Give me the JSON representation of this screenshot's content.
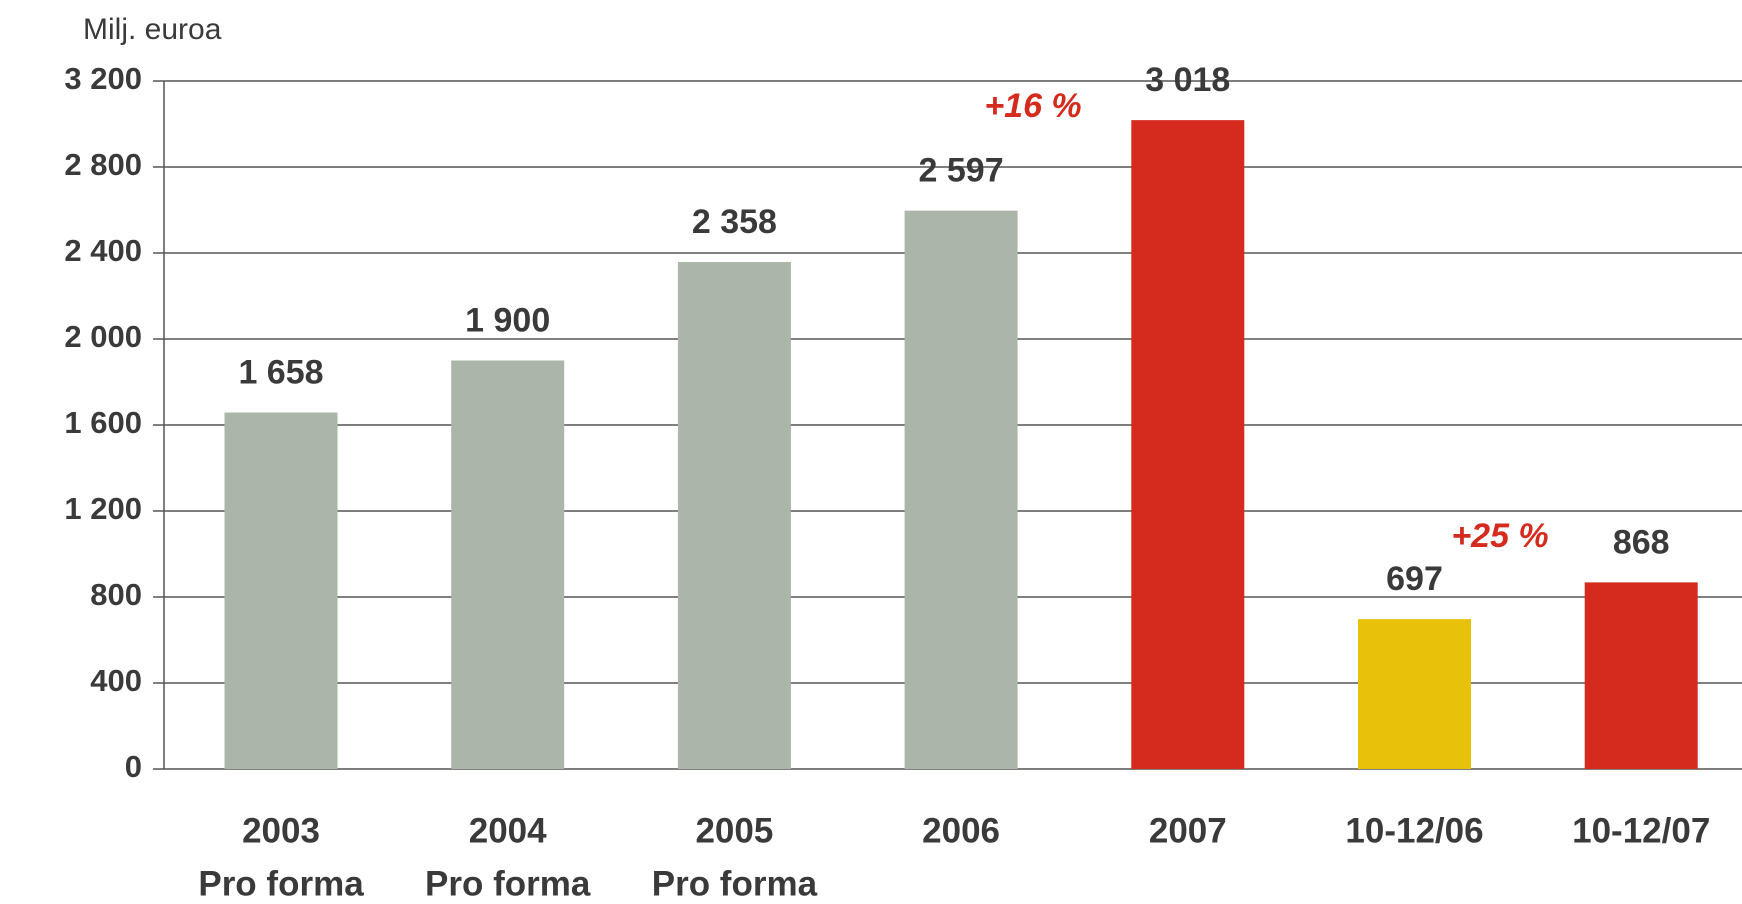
{
  "chart_data": {
    "type": "bar",
    "y_axis_label": "Milj. euroa",
    "categories": [
      [
        "2003",
        "Pro forma"
      ],
      [
        "2004",
        "Pro forma"
      ],
      [
        "2005",
        "Pro forma"
      ],
      [
        "2006"
      ],
      [
        "2007"
      ],
      [
        "10-12/06"
      ],
      [
        "10-12/07"
      ]
    ],
    "values": [
      1658,
      1900,
      2358,
      2597,
      3018,
      697,
      868
    ],
    "value_labels": [
      "1 658",
      "1 900",
      "2 358",
      "2 597",
      "3 018",
      "697",
      "868"
    ],
    "colors": [
      "#abb5a9",
      "#abb5a9",
      "#abb5a9",
      "#abb5a9",
      "#d52b1e",
      "#e8c10a",
      "#d52b1e"
    ],
    "ylim": [
      0,
      3200
    ],
    "yticks": [
      0,
      400,
      800,
      {
        "value": 1200,
        "label": "1 200"
      },
      {
        "value": 1600,
        "label": "1 600"
      },
      {
        "value": 2000,
        "label": "2 000"
      },
      {
        "value": 2400,
        "label": "2 400"
      },
      {
        "value": 2800,
        "label": "2 800"
      },
      {
        "value": 3200,
        "label": "3 200"
      }
    ],
    "grid": true,
    "annotations": [
      {
        "text": "+16 %",
        "x": 1033,
        "y": 108
      },
      {
        "text": "+25 %",
        "x": 1500,
        "y": 538
      }
    ]
  }
}
